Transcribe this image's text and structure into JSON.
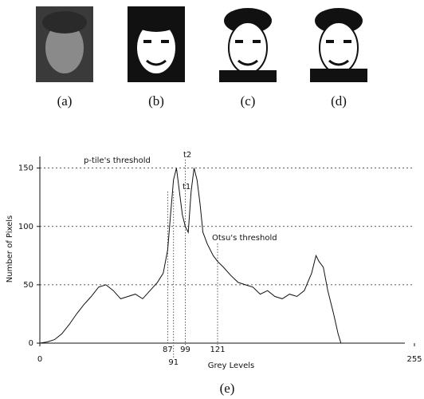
{
  "panels": [
    "(a)",
    "(b)",
    "(c)",
    "(d)"
  ],
  "chart_data": {
    "type": "line",
    "caption": "(e)",
    "xlabel": "Grey Levels",
    "ylabel": "Number of Pixels",
    "xlim": [
      0,
      255
    ],
    "ylim": [
      0,
      160
    ],
    "xticks": [
      0,
      255
    ],
    "yticks": [
      0,
      50,
      100,
      150
    ],
    "grid": true,
    "color": "#111111",
    "x": [
      0,
      5,
      10,
      15,
      20,
      25,
      30,
      35,
      40,
      45,
      50,
      55,
      60,
      65,
      70,
      75,
      80,
      84,
      87,
      89,
      91,
      93,
      95,
      97,
      99,
      101,
      103,
      105,
      107,
      109,
      111,
      114,
      118,
      121,
      125,
      130,
      135,
      140,
      145,
      150,
      155,
      160,
      165,
      170,
      175,
      180,
      185,
      188,
      190,
      193,
      196,
      200,
      203,
      205
    ],
    "values": [
      0,
      1,
      3,
      8,
      16,
      25,
      33,
      40,
      48,
      50,
      45,
      38,
      40,
      42,
      38,
      45,
      52,
      60,
      80,
      110,
      140,
      150,
      130,
      110,
      100,
      95,
      130,
      150,
      140,
      120,
      95,
      85,
      75,
      70,
      65,
      58,
      52,
      50,
      48,
      42,
      45,
      40,
      38,
      42,
      40,
      45,
      60,
      75,
      70,
      65,
      45,
      25,
      8,
      0
    ],
    "thresholds": [
      87,
      91,
      99,
      121
    ],
    "annotations": [
      "p-tile's threshold",
      "t1",
      "t2",
      "Otsu's threshold"
    ]
  }
}
